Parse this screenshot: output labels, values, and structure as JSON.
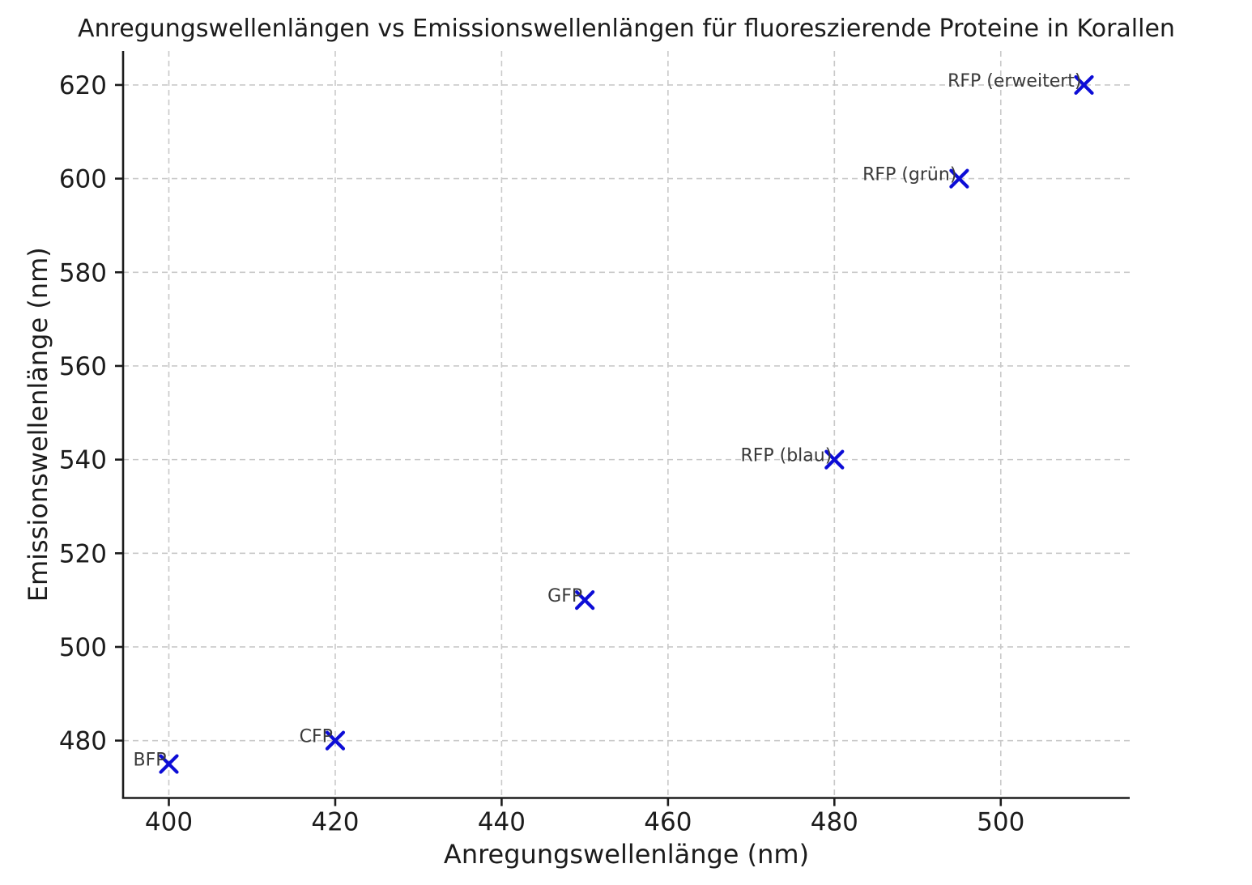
{
  "chart_data": {
    "type": "scatter",
    "title": "Anregungswellenlängen vs Emissionswellenlängen für fluoreszierende Proteine in Korallen",
    "xlabel": "Anregungswellenlänge (nm)",
    "ylabel": "Emissionswellenlänge (nm)",
    "xlim": [
      394.5,
      515.5
    ],
    "ylim": [
      467.75,
      627.25
    ],
    "xticks": [
      400,
      420,
      440,
      460,
      480,
      500
    ],
    "yticks": [
      480,
      500,
      520,
      540,
      560,
      580,
      600,
      620
    ],
    "grid": "dashed-both-axes",
    "legend": "none",
    "marker": "x",
    "points": [
      {
        "label": "BFP",
        "x": 400,
        "y": 475
      },
      {
        "label": "CFP",
        "x": 420,
        "y": 480
      },
      {
        "label": "GFP",
        "x": 450,
        "y": 510
      },
      {
        "label": "RFP (blau)",
        "x": 480,
        "y": 540
      },
      {
        "label": "RFP (grün)",
        "x": 495,
        "y": 600
      },
      {
        "label": "RFP (erweitert)",
        "x": 510,
        "y": 620
      }
    ]
  },
  "colors": {
    "background": "#ffffff",
    "marker": "#0d0dd6",
    "grid": "#c9c9c9",
    "axis": "#1c1c1c",
    "title_text": "#1c1c1c",
    "annotation_text": "#3a3a3a"
  }
}
